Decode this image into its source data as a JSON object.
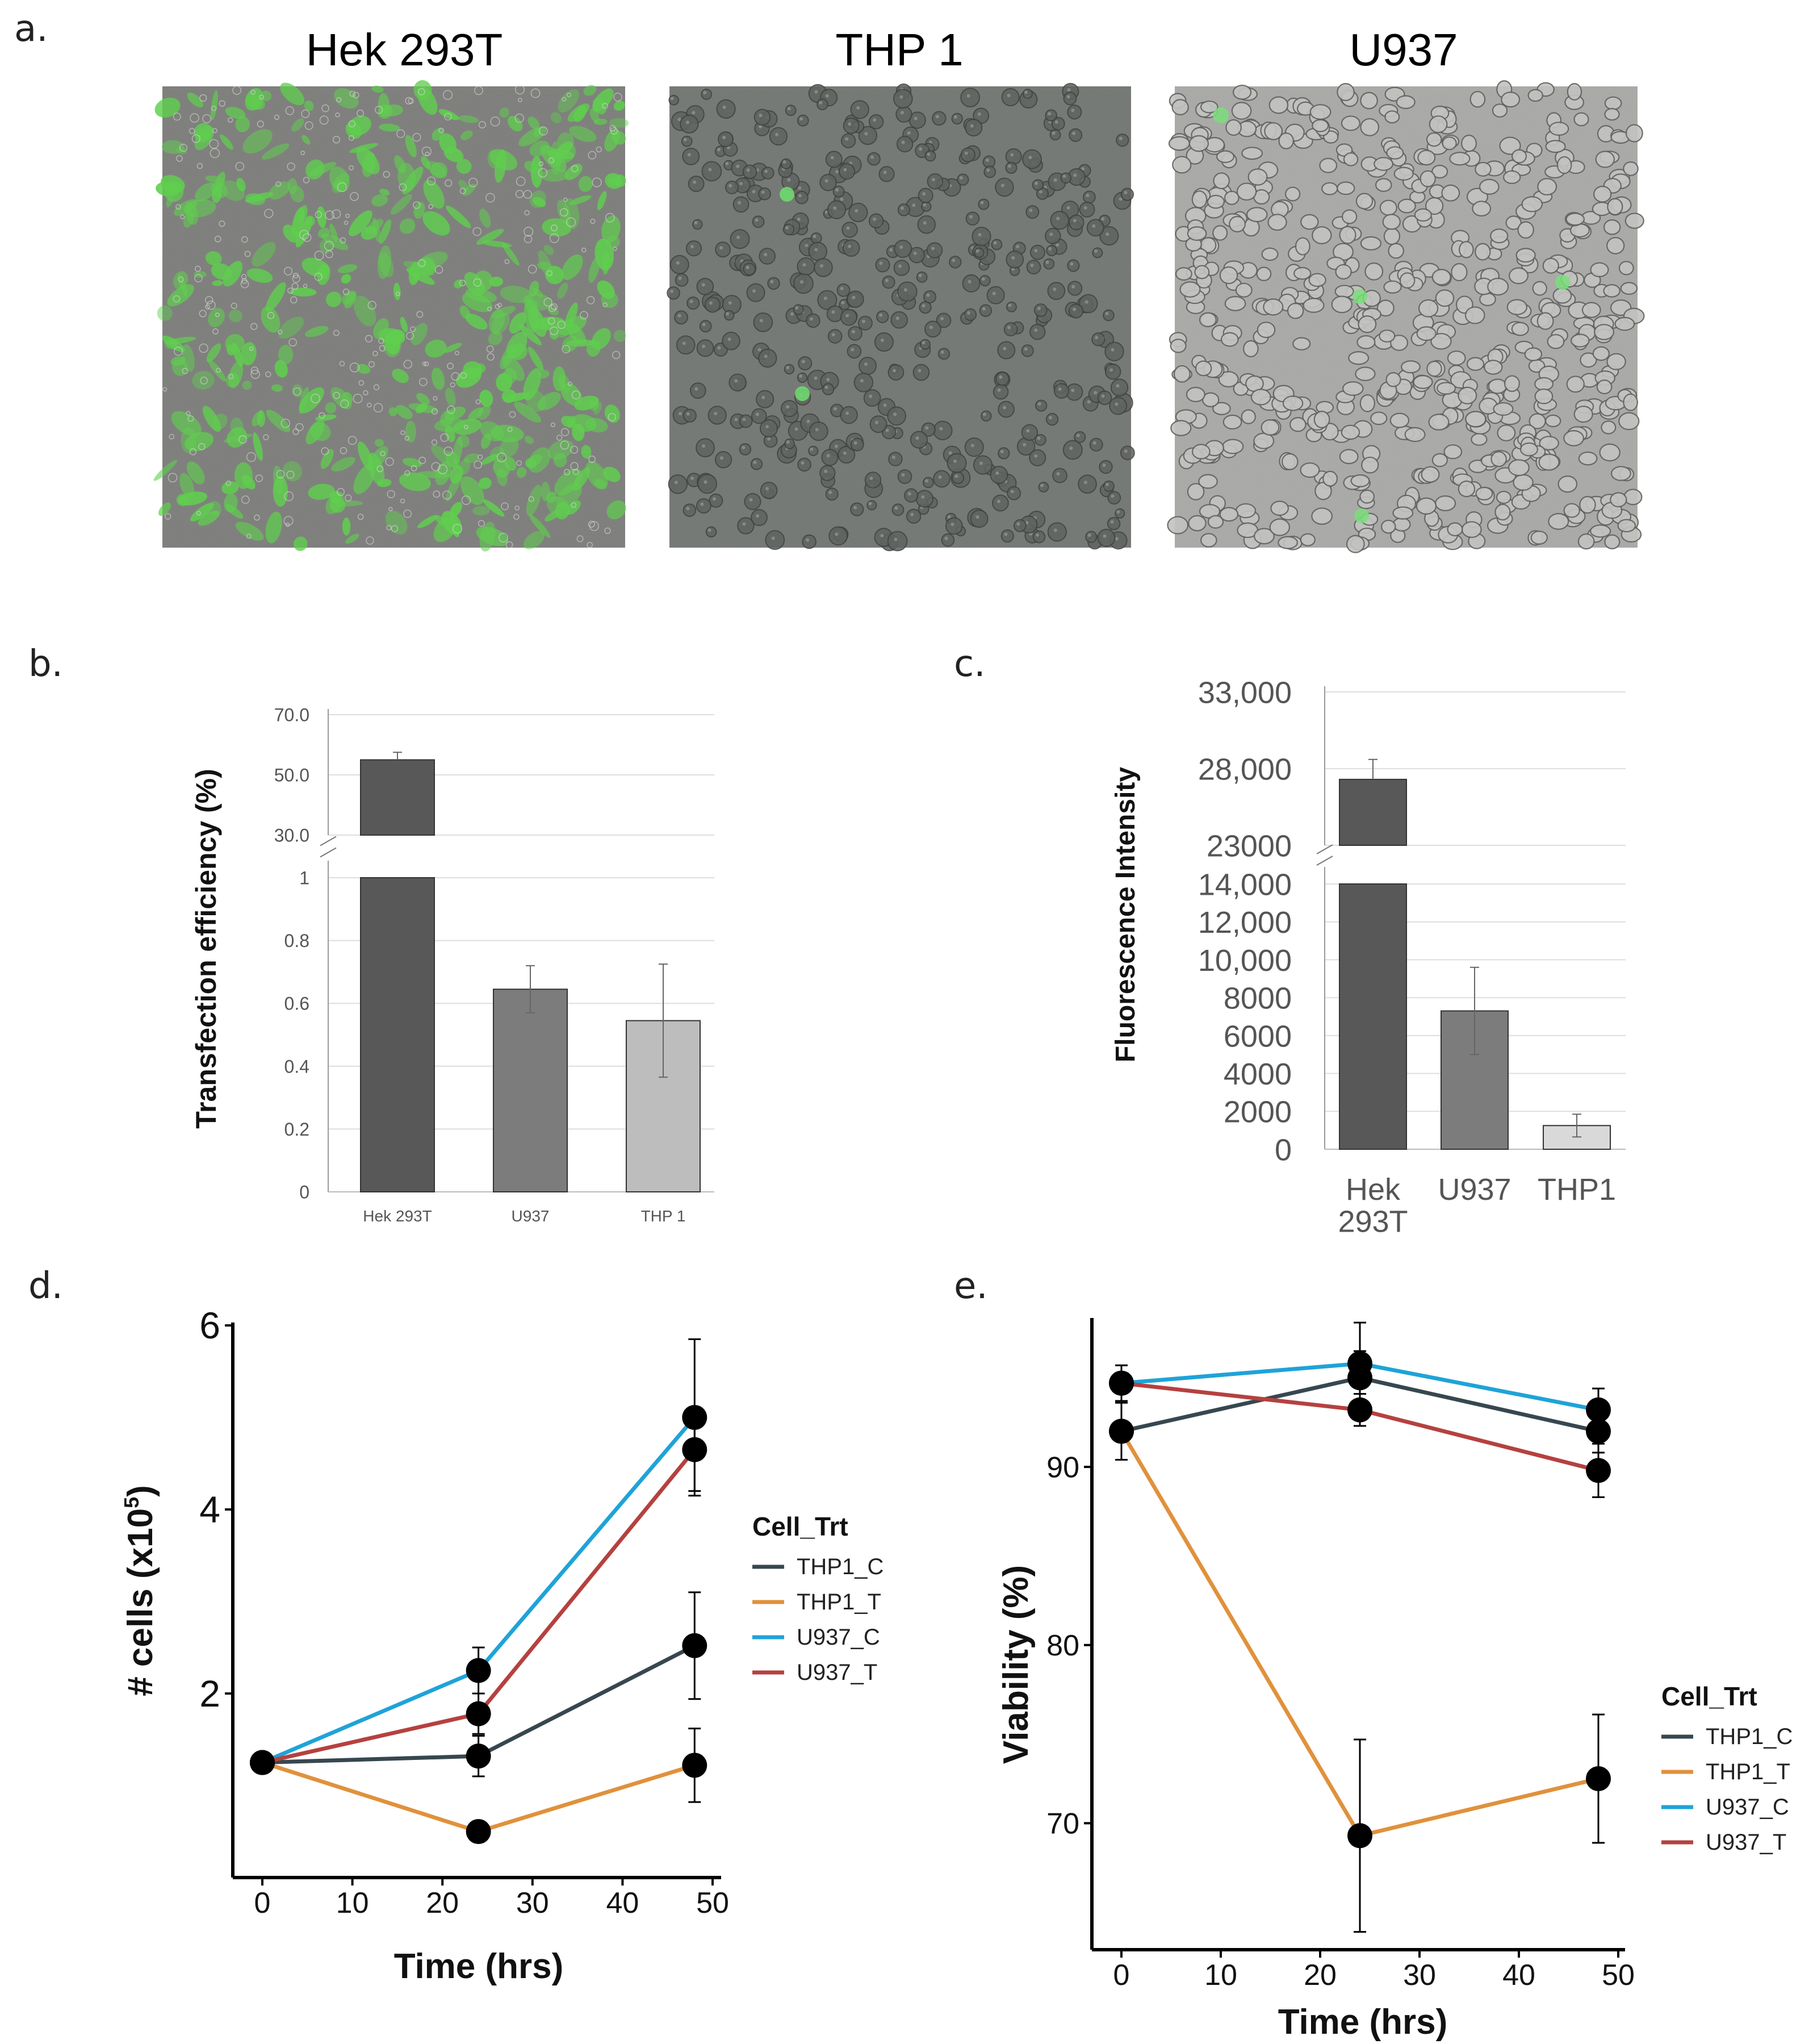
{
  "colors": {
    "THP1_C": "#37474f",
    "THP1_T": "#e0913c",
    "U937_C": "#1fa3d8",
    "U937_T": "#b5413f",
    "bar_dark": "#585858",
    "bar_mid": "#7c7c7c",
    "bar_light": "#bdbdbd",
    "fluor_light": "#d9d9d9"
  },
  "panel_a": {
    "label": "a.",
    "images": [
      {
        "title": "Hek 293T"
      },
      {
        "title": "THP 1"
      },
      {
        "title": "U937"
      }
    ]
  },
  "chart_data": [
    {
      "panel": "b.",
      "type": "bar",
      "title": "",
      "ylabel": "Transfection efficiency (%)",
      "xlabel": "",
      "categories": [
        "Hek 293T",
        "U937",
        "THP 1"
      ],
      "values": [
        55,
        0.645,
        0.545
      ],
      "errors": [
        2.5,
        0.075,
        0.18
      ],
      "broken_axis": {
        "lower_ticks": [
          "0",
          "0.2",
          "0.4",
          "0.6",
          "0.8",
          "1"
        ],
        "lower_range": [
          0,
          1
        ],
        "upper_ticks": [
          "30.0",
          "50.0",
          "70.0"
        ],
        "upper_range": [
          30,
          70
        ]
      },
      "grid": true
    },
    {
      "panel": "c.",
      "type": "bar",
      "title": "",
      "ylabel": "Fluorescence Intensity",
      "xlabel": "",
      "categories": [
        "Hek\n293T",
        "U937",
        "THP1"
      ],
      "values": [
        27300,
        7300,
        1250
      ],
      "errors": [
        1300,
        2300,
        600
      ],
      "broken_axis": {
        "lower_ticks": [
          "0",
          "2000",
          "4000",
          "6000",
          "8000",
          "10,000",
          "12,000",
          "14,000"
        ],
        "lower_range": [
          0,
          14000
        ],
        "upper_ticks": [
          "23000",
          "28,000",
          "33,000"
        ],
        "upper_range": [
          23000,
          33000
        ]
      },
      "grid": true
    },
    {
      "panel": "d.",
      "type": "line",
      "title": "",
      "xlabel": "Time (hrs)",
      "ylabel_main": "# cells (x10",
      "ylabel_sup": "5",
      "ylabel_close": ")",
      "x_ticks": [
        "0",
        "10",
        "20",
        "30",
        "40",
        "50"
      ],
      "xlim": [
        0,
        50
      ],
      "y_ticks": [
        "2",
        "4",
        "6"
      ],
      "ylim": [
        0,
        6.05
      ],
      "legend_title": "Cell_Trt",
      "legend_position": "right",
      "x": [
        0,
        24,
        48
      ],
      "series": [
        {
          "name": "THP1_C",
          "values": [
            1.25,
            1.32,
            2.52
          ],
          "errors": [
            0,
            0.22,
            0.58
          ]
        },
        {
          "name": "THP1_T",
          "values": [
            1.25,
            0.5,
            1.22
          ],
          "errors": [
            0,
            0,
            0.4
          ]
        },
        {
          "name": "U937_C",
          "values": [
            1.25,
            2.25,
            5.0
          ],
          "errors": [
            0,
            0.25,
            0.85
          ]
        },
        {
          "name": "U937_T",
          "values": [
            1.25,
            1.78,
            4.65
          ],
          "errors": [
            0,
            0.22,
            0.45
          ]
        }
      ]
    },
    {
      "panel": "e.",
      "type": "line",
      "title": "",
      "xlabel": "Time (hrs)",
      "ylabel": "Viability (%)",
      "x_ticks": [
        "0",
        "10",
        "20",
        "30",
        "40",
        "50"
      ],
      "xlim": [
        0,
        50
      ],
      "y_ticks": [
        "70",
        "80",
        "90"
      ],
      "ylim": [
        62.9,
        98.2
      ],
      "legend_title": "Cell_Trt",
      "legend_position": "right",
      "x": [
        0,
        24,
        48
      ],
      "series": [
        {
          "name": "THP1_C",
          "values": [
            92.0,
            95.0,
            92.0
          ],
          "errors": [
            1.6,
            1.5,
            1.2
          ]
        },
        {
          "name": "THP1_T",
          "values": [
            92.0,
            69.3,
            72.5
          ],
          "errors": [
            0,
            5.4,
            3.6
          ]
        },
        {
          "name": "U937_C",
          "values": [
            94.7,
            95.8,
            93.2
          ],
          "errors": [
            1.0,
            2.3,
            1.2
          ]
        },
        {
          "name": "U937_T",
          "values": [
            94.7,
            93.2,
            89.8
          ],
          "errors": [
            1.0,
            0.9,
            1.5
          ]
        }
      ]
    }
  ]
}
